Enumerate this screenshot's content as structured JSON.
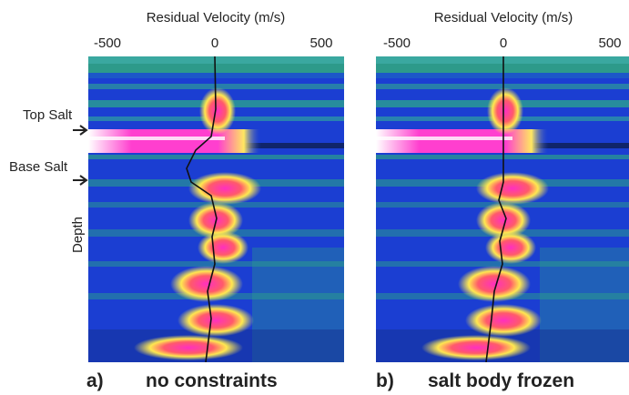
{
  "panels": [
    {
      "axis_label": "Residual Velocity (m/s)",
      "ticks": [
        -500,
        0,
        500
      ],
      "letter": "a)",
      "caption": "no constraints"
    },
    {
      "axis_label": "Residual Velocity (m/s)",
      "ticks": [
        -500,
        0,
        500
      ],
      "letter": "b)",
      "caption": "salt body frozen"
    }
  ],
  "annotations": {
    "top_salt": "Top Salt",
    "base_salt": "Base Salt",
    "depth": "Depth"
  }
}
